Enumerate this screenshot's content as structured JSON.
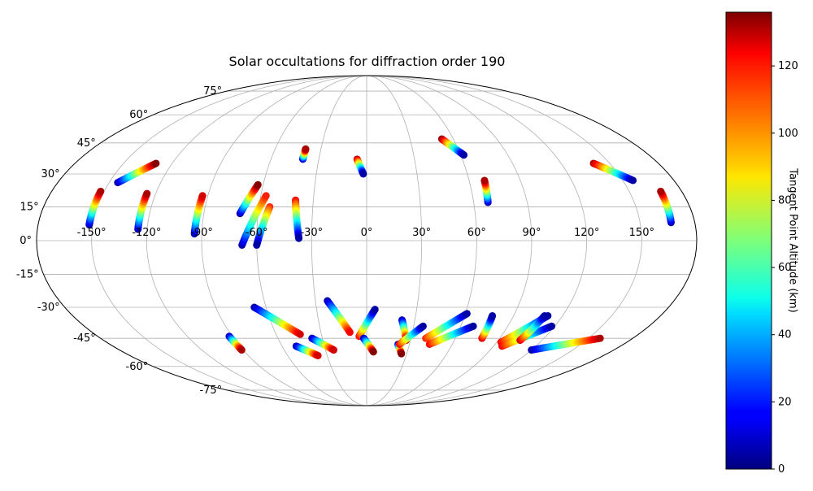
{
  "chart_data": {
    "type": "scatter",
    "projection": "mollweide",
    "title": "Solar occultations for diffraction order 190",
    "xlabel": "",
    "ylabel": "",
    "grid": true,
    "x_ticks": [
      "-150°",
      "-120°",
      "-90°",
      "-60°",
      "-30°",
      "0°",
      "30°",
      "60°",
      "90°",
      "120°",
      "150°"
    ],
    "y_ticks": [
      "-75°",
      "-60°",
      "-45°",
      "-30°",
      "-15°",
      "0°",
      "15°",
      "30°",
      "45°",
      "60°",
      "75°"
    ],
    "xlim": [
      -180,
      180
    ],
    "ylim": [
      -90,
      90
    ],
    "colorbar": {
      "label": "Tangent Point Altitude (km)",
      "range": [
        0,
        136
      ],
      "ticks": [
        "0",
        "20",
        "40",
        "60",
        "80",
        "100",
        "120"
      ],
      "colormap": "jet"
    },
    "series": [
      {
        "lon": [
          -152,
          -152
        ],
        "lat": [
          7,
          22
        ],
        "alt": [
          5,
          130
        ]
      },
      {
        "lon": [
          -145,
          -130
        ],
        "lat": [
          26,
          35
        ],
        "alt": [
          5,
          135
        ]
      },
      {
        "lon": [
          -125,
          -125
        ],
        "lat": [
          5,
          21
        ],
        "alt": [
          5,
          130
        ]
      },
      {
        "lon": [
          -94,
          -93
        ],
        "lat": [
          3,
          20
        ],
        "alt": [
          5,
          125
        ]
      },
      {
        "lon": [
          -70,
          -63
        ],
        "lat": [
          12,
          25
        ],
        "alt": [
          5,
          135
        ]
      },
      {
        "lon": [
          -68,
          -57
        ],
        "lat": [
          -2,
          20
        ],
        "alt": [
          5,
          115
        ]
      },
      {
        "lon": [
          -54,
          -60
        ],
        "lat": [
          15,
          -2
        ],
        "alt": [
          115,
          5
        ]
      },
      {
        "lon": [
          -40,
          -40
        ],
        "lat": [
          37,
          42
        ],
        "alt": [
          5,
          130
        ]
      },
      {
        "lon": [
          -40,
          -37
        ],
        "lat": [
          18,
          1
        ],
        "alt": [
          120,
          5
        ]
      },
      {
        "lon": [
          -6,
          -2
        ],
        "lat": [
          37,
          30
        ],
        "alt": [
          130,
          5
        ]
      },
      {
        "lon": [
          52,
          62
        ],
        "lat": [
          47,
          39
        ],
        "alt": [
          135,
          5
        ]
      },
      {
        "lon": [
          68,
          69
        ],
        "lat": [
          17,
          27
        ],
        "alt": [
          5,
          130
        ]
      },
      {
        "lon": [
          140,
          156
        ],
        "lat": [
          35,
          27
        ],
        "alt": [
          130,
          5
        ]
      },
      {
        "lon": [
          167,
          168
        ],
        "lat": [
          8,
          22
        ],
        "alt": [
          5,
          130
        ]
      },
      {
        "lon": [
          -67,
          -44
        ],
        "lat": [
          -30,
          -43
        ],
        "alt": [
          5,
          125
        ]
      },
      {
        "lon": [
          -92,
          -91
        ],
        "lat": [
          -44,
          -51
        ],
        "alt": [
          5,
          130
        ]
      },
      {
        "lon": [
          -50,
          -37
        ],
        "lat": [
          -49,
          -54
        ],
        "alt": [
          5,
          125
        ]
      },
      {
        "lon": [
          -37,
          -24
        ],
        "lat": [
          -45,
          -51
        ],
        "alt": [
          5,
          125
        ]
      },
      {
        "lon": [
          -23,
          -11
        ],
        "lat": [
          -27,
          -42
        ],
        "alt": [
          5,
          120
        ]
      },
      {
        "lon": [
          -5,
          5
        ],
        "lat": [
          -44,
          -31
        ],
        "alt": [
          120,
          5
        ]
      },
      {
        "lon": [
          -2,
          5
        ],
        "lat": [
          -45,
          -52
        ],
        "alt": [
          5,
          135
        ]
      },
      {
        "lon": [
          22,
          27
        ],
        "lat": [
          -36,
          -46
        ],
        "alt": [
          5,
          130
        ]
      },
      {
        "lon": [
          22,
          26
        ],
        "lat": [
          -48,
          -53
        ],
        "alt": [
          5,
          135
        ]
      },
      {
        "lon": [
          23,
          36
        ],
        "lat": [
          -48,
          -39
        ],
        "alt": [
          120,
          5
        ]
      },
      {
        "lon": [
          40,
          61
        ],
        "lat": [
          -45,
          -33
        ],
        "alt": [
          115,
          5
        ]
      },
      {
        "lon": [
          44,
          68
        ],
        "lat": [
          -48,
          -39
        ],
        "alt": [
          120,
          5
        ]
      },
      {
        "lon": [
          78,
          77
        ],
        "lat": [
          -45,
          -34
        ],
        "alt": [
          125,
          5
        ]
      },
      {
        "lon": [
          93,
          111
        ],
        "lat": [
          -47,
          -34
        ],
        "alt": [
          120,
          5
        ]
      },
      {
        "lon": [
          96,
          118
        ],
        "lat": [
          -49,
          -39
        ],
        "alt": [
          120,
          5
        ]
      },
      {
        "lon": [
          105,
          109
        ],
        "lat": [
          -46,
          -34
        ],
        "alt": [
          125,
          5
        ]
      },
      {
        "lon": [
          120,
          158
        ],
        "lat": [
          -51,
          -45
        ],
        "alt": [
          5,
          130
        ]
      }
    ]
  }
}
